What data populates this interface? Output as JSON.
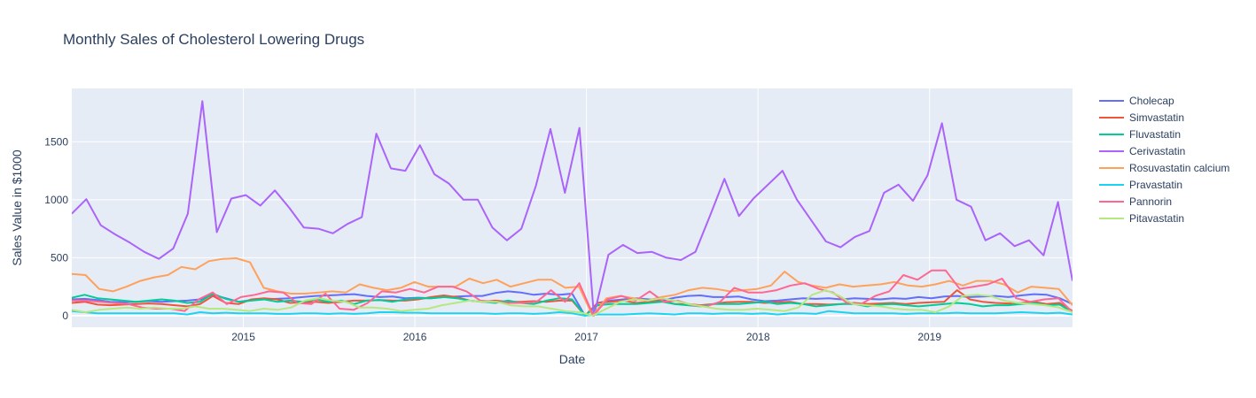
{
  "chart_data": {
    "type": "line",
    "title": "Monthly Sales of Cholesterol Lowering Drugs",
    "xlabel": "Date",
    "ylabel": "Sales Value in $1000",
    "x_start": "2014-01",
    "x_end": "2019-11",
    "xlim": [
      "2014-01",
      "2019-11"
    ],
    "ylim": [
      -100,
      1960
    ],
    "x_ticks": [
      "2015",
      "2016",
      "2017",
      "2018",
      "2019"
    ],
    "y_ticks": [
      0,
      500,
      1000,
      1500
    ],
    "grid": true,
    "legend_position": "right",
    "plot_background": "#e5ecf6",
    "series": [
      {
        "name": "Cholecap",
        "color": "#636efa",
        "values": [
          140,
          145,
          135,
          120,
          115,
          120,
          125,
          120,
          125,
          130,
          140,
          180,
          150,
          120,
          135,
          140,
          145,
          150,
          160,
          170,
          175,
          180,
          185,
          170,
          160,
          165,
          150,
          155,
          150,
          160,
          165,
          170,
          170,
          195,
          210,
          200,
          180,
          190,
          180,
          190,
          0,
          110,
          130,
          140,
          150,
          140,
          130,
          155,
          170,
          175,
          160,
          160,
          165,
          140,
          125,
          130,
          140,
          150,
          145,
          150,
          140,
          150,
          145,
          140,
          150,
          145,
          160,
          150,
          165,
          170,
          160,
          165,
          170,
          160,
          175,
          185,
          180,
          150,
          100
        ]
      },
      {
        "name": "Simvastatin",
        "color": "#ef553b",
        "values": [
          110,
          120,
          95,
          90,
          95,
          100,
          105,
          100,
          90,
          80,
          100,
          170,
          110,
          100,
          140,
          150,
          140,
          110,
          115,
          120,
          110,
          120,
          130,
          130,
          135,
          130,
          130,
          140,
          160,
          175,
          160,
          130,
          120,
          130,
          120,
          120,
          125,
          120,
          130,
          130,
          0,
          110,
          120,
          130,
          110,
          120,
          130,
          100,
          100,
          90,
          100,
          115,
          120,
          120,
          110,
          115,
          120,
          100,
          100,
          95,
          100,
          110,
          100,
          105,
          110,
          100,
          110,
          115,
          120,
          220,
          140,
          120,
          110,
          105,
          110,
          120,
          100,
          110,
          40
        ]
      },
      {
        "name": "Fluvastatin",
        "color": "#00cc96",
        "values": [
          155,
          180,
          150,
          140,
          130,
          120,
          130,
          140,
          130,
          110,
          120,
          190,
          145,
          120,
          130,
          140,
          120,
          130,
          120,
          140,
          120,
          130,
          100,
          130,
          135,
          120,
          140,
          150,
          150,
          160,
          150,
          130,
          120,
          110,
          130,
          110,
          100,
          130,
          150,
          140,
          0,
          90,
          100,
          100,
          100,
          110,
          120,
          100,
          90,
          80,
          100,
          100,
          100,
          110,
          120,
          100,
          110,
          100,
          80,
          90,
          100,
          100,
          80,
          95,
          100,
          90,
          80,
          90,
          100,
          110,
          100,
          80,
          90,
          90,
          100,
          110,
          90,
          95,
          30
        ]
      },
      {
        "name": "Cerivastatin",
        "color": "#ab63fa",
        "values": [
          880,
          1005,
          780,
          700,
          630,
          550,
          490,
          580,
          880,
          1850,
          720,
          1010,
          1040,
          950,
          1080,
          930,
          760,
          750,
          710,
          790,
          850,
          1570,
          1270,
          1250,
          1470,
          1220,
          1140,
          1000,
          1000,
          760,
          650,
          750,
          1120,
          1610,
          1060,
          1620,
          0,
          525,
          610,
          540,
          550,
          500,
          480,
          550,
          860,
          1180,
          860,
          1010,
          1130,
          1250,
          1000,
          820,
          640,
          590,
          680,
          730,
          1060,
          1130,
          990,
          1210,
          1660,
          1000,
          940,
          650,
          710,
          600,
          650,
          520,
          980,
          300
        ]
      },
      {
        "name": "Rosuvastatin calcium",
        "color": "#ffa15a",
        "values": [
          360,
          350,
          230,
          210,
          250,
          300,
          330,
          350,
          420,
          400,
          470,
          490,
          495,
          460,
          240,
          210,
          190,
          190,
          200,
          210,
          200,
          270,
          240,
          220,
          240,
          290,
          250,
          250,
          250,
          320,
          280,
          310,
          250,
          280,
          310,
          310,
          240,
          250,
          0,
          150,
          170,
          150,
          130,
          160,
          180,
          220,
          240,
          230,
          210,
          220,
          230,
          260,
          380,
          290,
          260,
          240,
          270,
          250,
          260,
          270,
          290,
          260,
          250,
          270,
          300,
          260,
          300,
          300,
          270,
          200,
          250,
          240,
          230,
          90
        ]
      },
      {
        "name": "Pravastatin",
        "color": "#19d3f3",
        "values": [
          40,
          30,
          20,
          20,
          20,
          20,
          20,
          20,
          20,
          10,
          30,
          20,
          25,
          20,
          20,
          20,
          15,
          15,
          20,
          20,
          15,
          20,
          15,
          20,
          30,
          30,
          25,
          25,
          20,
          20,
          20,
          20,
          20,
          15,
          20,
          20,
          15,
          20,
          30,
          20,
          0,
          10,
          10,
          10,
          15,
          20,
          15,
          10,
          20,
          20,
          15,
          20,
          20,
          15,
          20,
          10,
          20,
          20,
          15,
          40,
          30,
          20,
          20,
          20,
          20,
          15,
          20,
          20,
          20,
          25,
          20,
          20,
          20,
          25,
          30,
          25,
          20,
          25,
          10
        ]
      },
      {
        "name": "Pannorin",
        "color": "#ff6692",
        "values": [
          130,
          130,
          120,
          110,
          100,
          70,
          60,
          60,
          40,
          140,
          200,
          100,
          160,
          180,
          210,
          200,
          110,
          100,
          190,
          60,
          50,
          110,
          210,
          200,
          230,
          200,
          250,
          250,
          210,
          130,
          120,
          110,
          110,
          120,
          220,
          120,
          280,
          0,
          140,
          170,
          130,
          210,
          120,
          130,
          90,
          80,
          120,
          240,
          200,
          200,
          220,
          260,
          280,
          230,
          200,
          110,
          100,
          170,
          210,
          350,
          310,
          390,
          390,
          230,
          250,
          270,
          320,
          150,
          120,
          140,
          150,
          30
        ]
      },
      {
        "name": "Pitavastatin",
        "color": "#b6e880",
        "values": [
          50,
          30,
          50,
          60,
          70,
          60,
          70,
          60,
          60,
          80,
          60,
          60,
          50,
          40,
          60,
          50,
          70,
          130,
          150,
          130,
          120,
          70,
          70,
          60,
          40,
          50,
          60,
          90,
          110,
          130,
          120,
          120,
          90,
          80,
          80,
          60,
          40,
          30,
          0,
          60,
          120,
          140,
          130,
          150,
          130,
          100,
          80,
          60,
          50,
          50,
          60,
          50,
          40,
          70,
          180,
          220,
          170,
          100,
          90,
          80,
          60,
          50,
          50,
          30,
          80,
          170,
          180,
          170,
          130,
          110,
          100,
          90,
          70,
          30
        ]
      }
    ]
  }
}
